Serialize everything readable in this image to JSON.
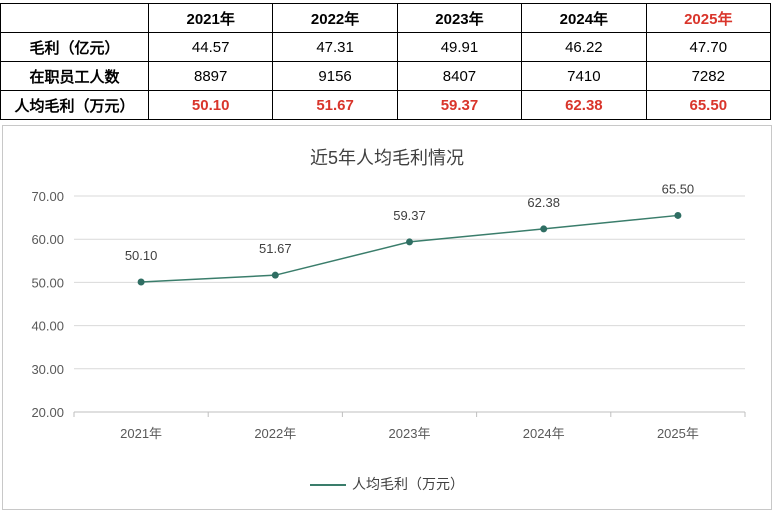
{
  "table": {
    "headers": [
      "",
      "2021年",
      "2022年",
      "2023年",
      "2024年",
      "2025年"
    ],
    "rows": [
      {
        "label": "毛利（亿元）",
        "values": [
          "44.57",
          "47.31",
          "49.91",
          "46.22",
          "47.70"
        ]
      },
      {
        "label": "在职员工人数",
        "values": [
          "8897",
          "9156",
          "8407",
          "7410",
          "7282"
        ]
      },
      {
        "label": "人均毛利（万元）",
        "values": [
          "50.10",
          "51.67",
          "59.37",
          "62.38",
          "65.50"
        ]
      }
    ],
    "highlight_color": "#d9352b"
  },
  "chart_data": {
    "type": "line",
    "title": "近5年人均毛利情况",
    "categories": [
      "2021年",
      "2022年",
      "2023年",
      "2024年",
      "2025年"
    ],
    "series": [
      {
        "name": "人均毛利（万元）",
        "values": [
          50.1,
          51.67,
          59.37,
          62.38,
          65.5
        ],
        "color": "#3a7d6b"
      }
    ],
    "data_labels": [
      "50.10",
      "51.67",
      "59.37",
      "62.38",
      "65.50"
    ],
    "ylim": [
      20,
      70
    ],
    "yticks": [
      "20.00",
      "30.00",
      "40.00",
      "50.00",
      "60.00",
      "70.00"
    ],
    "grid": true,
    "legend_position": "bottom",
    "xlabel": "",
    "ylabel": ""
  }
}
